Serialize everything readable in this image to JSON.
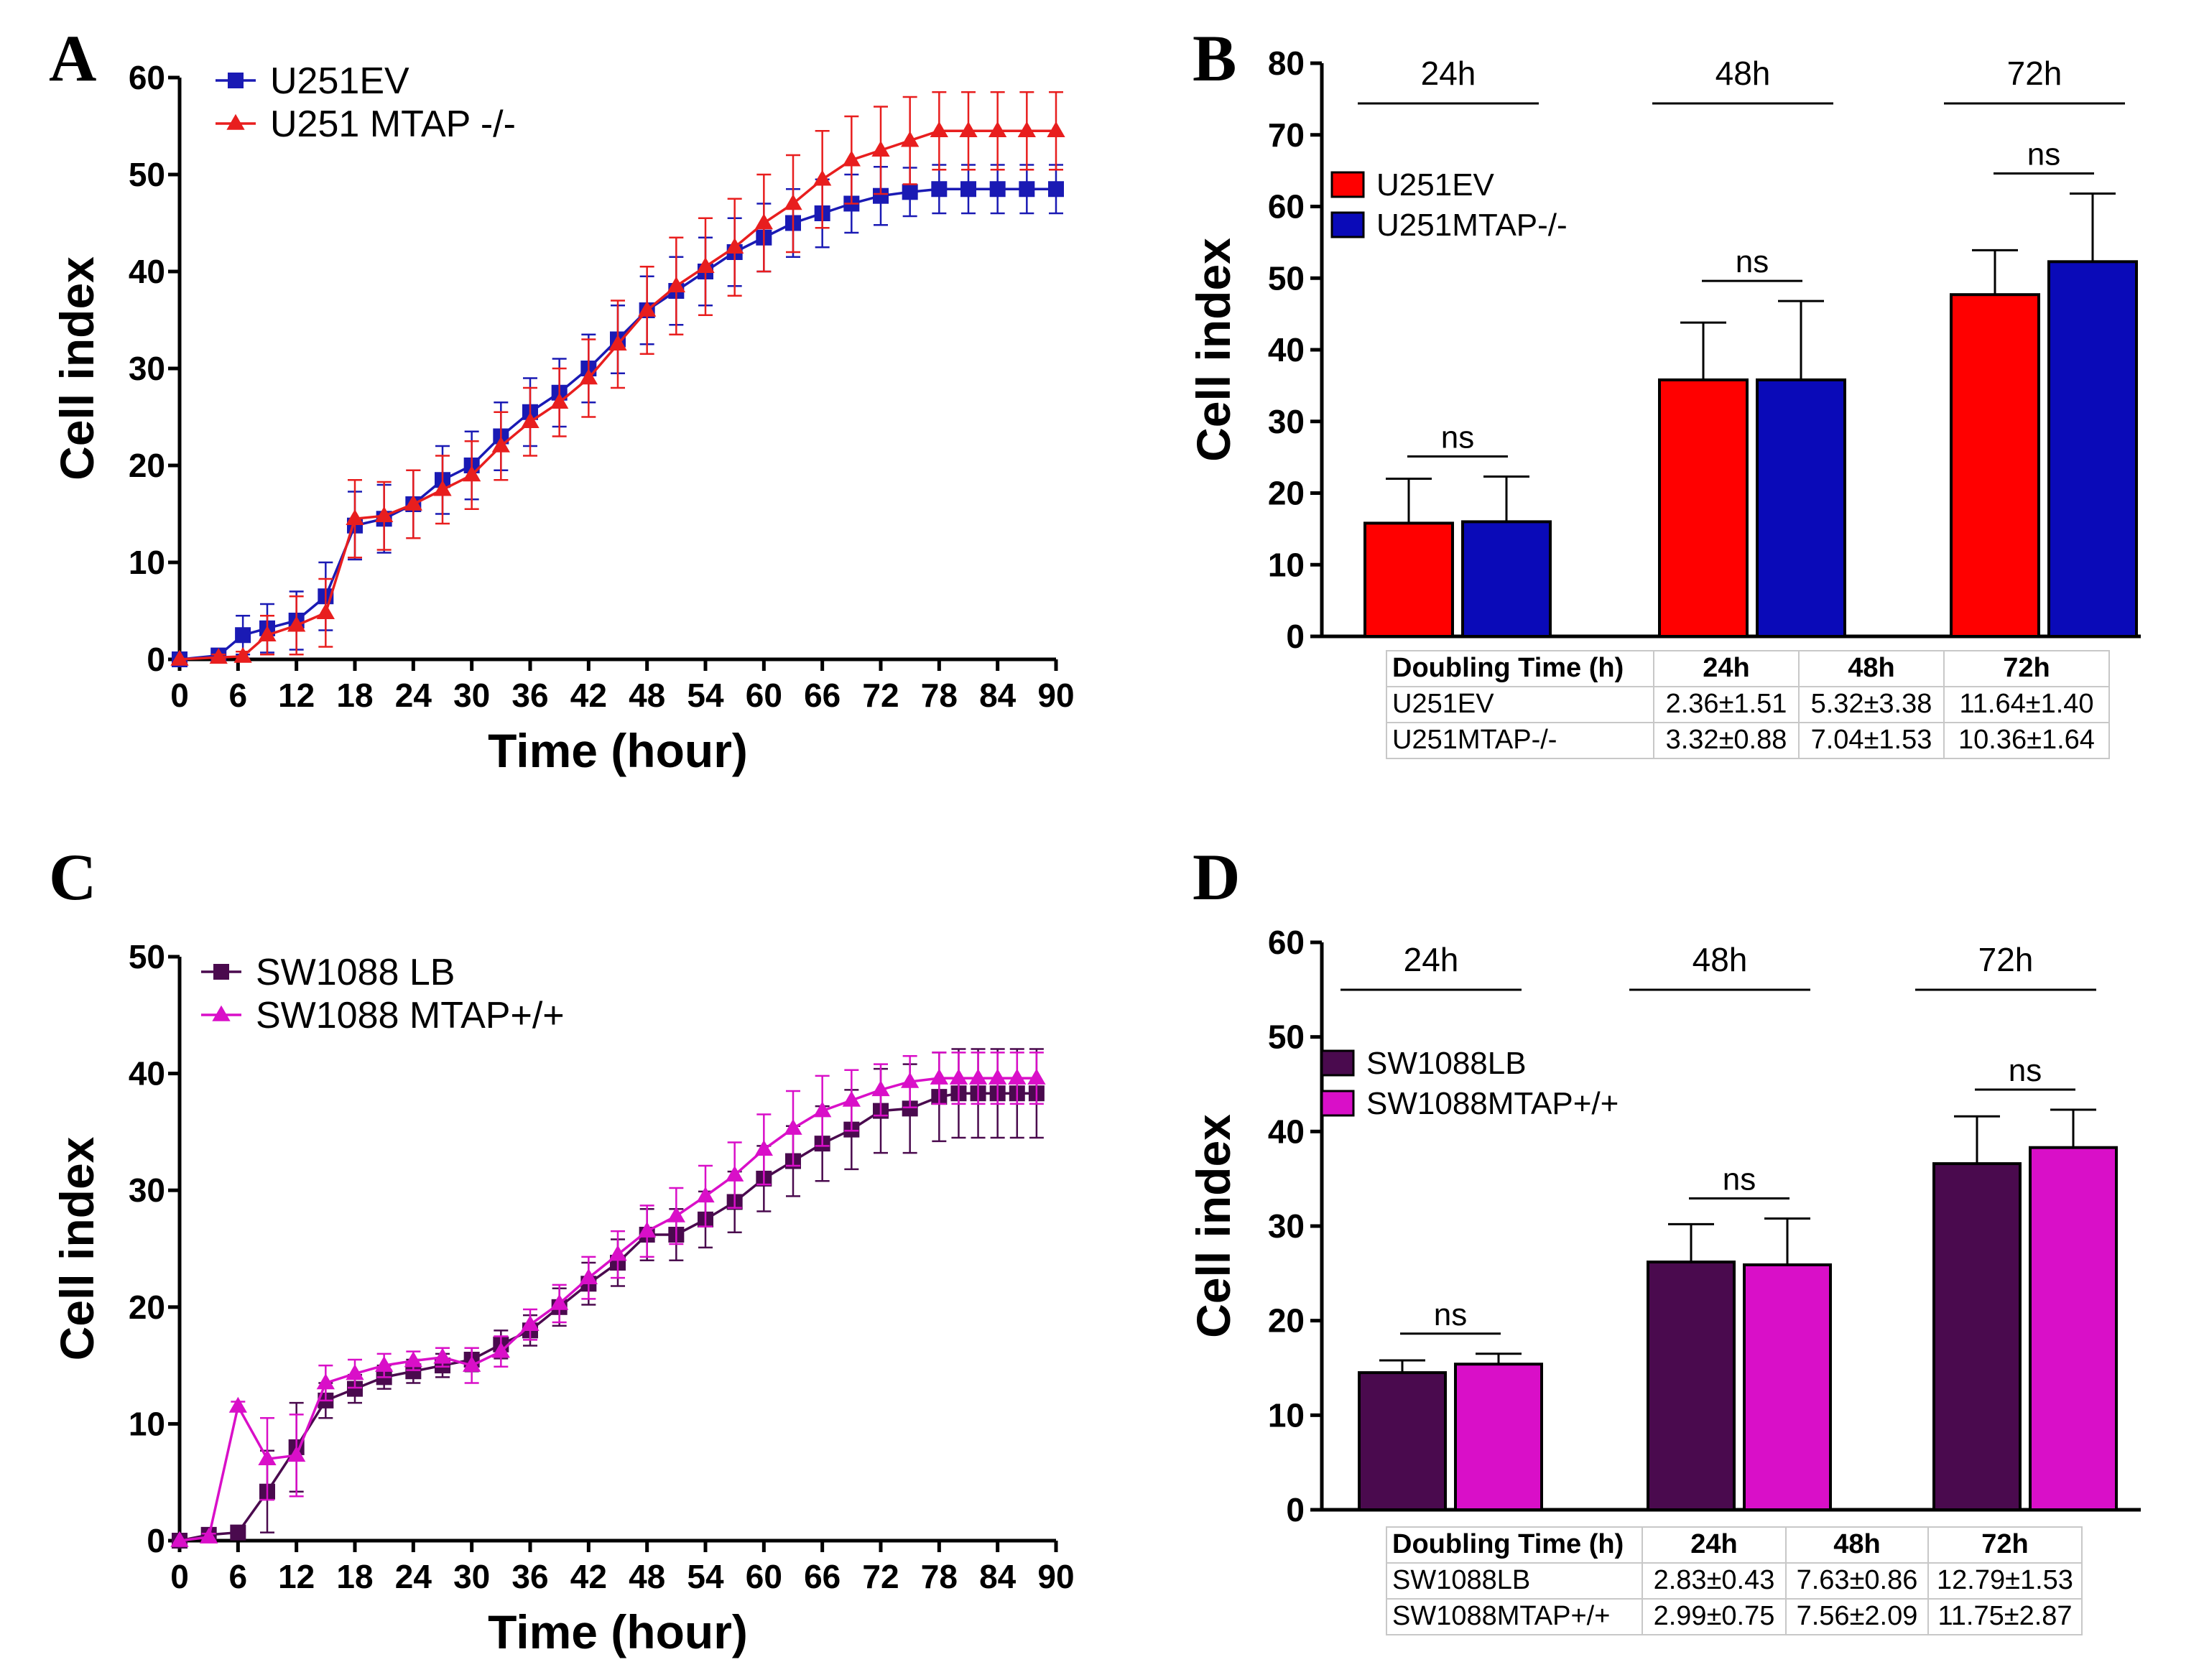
{
  "colors": {
    "u251ev_line": "#1a1ab4",
    "u251mtap_line": "#e81e1e",
    "bar_red": "#ff0000",
    "bar_blue": "#0a0ab8",
    "sw_lb": "#4a0a4e",
    "sw_mtap": "#d90fc8"
  },
  "panels": {
    "A": "A",
    "B": "B",
    "C": "C",
    "D": "D"
  },
  "chart_data": [
    {
      "id": "A",
      "type": "line",
      "xlabel": "Time (hour)",
      "ylabel": "Cell index",
      "xlim": [
        0,
        90
      ],
      "ylim": [
        0,
        60
      ],
      "xticks": [
        0,
        6,
        12,
        18,
        24,
        30,
        36,
        42,
        48,
        54,
        60,
        66,
        72,
        78,
        84,
        90
      ],
      "yticks": [
        0,
        10,
        20,
        30,
        40,
        50,
        60
      ],
      "series": [
        {
          "name": "U251EV",
          "marker": "square",
          "color": "#1a1ab4",
          "x": [
            0,
            4,
            6.5,
            9,
            12,
            15,
            18,
            21,
            24,
            27,
            30,
            33,
            36,
            39,
            42,
            45,
            48,
            51,
            54,
            57,
            60,
            63,
            66,
            69,
            72,
            75,
            78,
            81,
            84,
            87,
            90
          ],
          "y": [
            0,
            0.4,
            2.5,
            3.2,
            4,
            6.5,
            13.8,
            14.5,
            16,
            18.5,
            20,
            23,
            25.5,
            27.5,
            30,
            33,
            36,
            38,
            40,
            42,
            43.5,
            45,
            46,
            47,
            47.8,
            48.2,
            48.5,
            48.5,
            48.5,
            48.5,
            48.5
          ],
          "err": [
            0,
            0.5,
            2,
            2.5,
            3,
            3.5,
            3.5,
            3.5,
            3.5,
            3.5,
            3.5,
            3.5,
            3.5,
            3.5,
            3.5,
            3.5,
            3.5,
            3.5,
            3.5,
            3.5,
            3.5,
            3.5,
            3.5,
            3,
            3,
            2.5,
            2.5,
            2.5,
            2.5,
            2.5,
            2.5
          ]
        },
        {
          "name": "U251 MTAP -/-",
          "marker": "triangle",
          "color": "#e81e1e",
          "x": [
            0,
            4,
            6.5,
            9,
            12,
            15,
            18,
            21,
            24,
            27,
            30,
            33,
            36,
            39,
            42,
            45,
            48,
            51,
            54,
            57,
            60,
            63,
            66,
            69,
            72,
            75,
            78,
            81,
            84,
            87,
            90
          ],
          "y": [
            0,
            0.2,
            0.3,
            2.5,
            3.5,
            4.8,
            14.5,
            14.8,
            16,
            17.5,
            19,
            22,
            24.5,
            26.5,
            29,
            32.5,
            36,
            38.5,
            40.5,
            42.5,
            45,
            47,
            49.5,
            51.5,
            52.5,
            53.5,
            54.5,
            54.5,
            54.5,
            54.5,
            54.5
          ],
          "err": [
            0,
            0.3,
            0.5,
            2,
            3,
            3.5,
            4,
            3.5,
            3.5,
            3.5,
            3.5,
            3.5,
            3.5,
            3.5,
            4,
            4.5,
            4.5,
            5,
            5,
            5,
            5,
            5,
            5,
            4.5,
            4.5,
            4.5,
            4,
            4,
            4,
            4,
            4
          ]
        }
      ]
    },
    {
      "id": "B",
      "type": "bar",
      "ylabel": "Cell index",
      "ylim": [
        0,
        80
      ],
      "yticks": [
        0,
        10,
        20,
        30,
        40,
        50,
        60,
        70,
        80
      ],
      "categories": [
        "24h",
        "48h",
        "72h"
      ],
      "significance": [
        "ns",
        "ns",
        "ns"
      ],
      "series": [
        {
          "name": "U251EV",
          "color": "#ff0000",
          "values": [
            15.8,
            35.8,
            47.7
          ],
          "err": [
            6.2,
            8,
            6.2
          ]
        },
        {
          "name": "U251MTAP-/-",
          "color": "#0a0ab8",
          "values": [
            16,
            35.8,
            52.3
          ],
          "err": [
            6.3,
            11,
            9.5
          ]
        }
      ],
      "table": {
        "headers": [
          "Doubling Time (h)",
          "24h",
          "48h",
          "72h"
        ],
        "rows": [
          [
            "U251EV",
            "2.36±1.51",
            "5.32±3.38",
            "11.64±1.40"
          ],
          [
            "U251MTAP-/-",
            "3.32±0.88",
            "7.04±1.53",
            "10.36±1.64"
          ]
        ]
      }
    },
    {
      "id": "C",
      "type": "line",
      "xlabel": "Time (hour)",
      "ylabel": "Cell index",
      "xlim": [
        0,
        90
      ],
      "ylim": [
        0,
        50
      ],
      "xticks": [
        0,
        6,
        12,
        18,
        24,
        30,
        36,
        42,
        48,
        54,
        60,
        66,
        72,
        78,
        84,
        90
      ],
      "yticks": [
        0,
        10,
        20,
        30,
        40,
        50
      ],
      "series": [
        {
          "name": "SW1088 LB",
          "marker": "square",
          "color": "#4a0a4e",
          "x": [
            0,
            3,
            6,
            9,
            12,
            15,
            18,
            21,
            24,
            27,
            30,
            33,
            36,
            39,
            42,
            45,
            48,
            51,
            54,
            57,
            60,
            63,
            66,
            69,
            72,
            75,
            78,
            80,
            82,
            84,
            86,
            88
          ],
          "y": [
            0,
            0.5,
            0.7,
            4.2,
            8,
            12,
            13,
            14,
            14.5,
            15,
            15.5,
            16.8,
            18,
            20,
            22,
            23.8,
            26.2,
            26.2,
            27.5,
            29,
            31,
            32.5,
            34,
            35.2,
            36.8,
            37,
            38,
            38.3,
            38.3,
            38.3,
            38.3,
            38.3
          ],
          "err": [
            0,
            0.4,
            0.5,
            3.5,
            3.8,
            1.5,
            1.2,
            1,
            1,
            1,
            1,
            1.2,
            1.3,
            1.6,
            1.8,
            2,
            2.2,
            2.2,
            2.4,
            2.6,
            2.8,
            3,
            3.2,
            3.4,
            3.6,
            3.8,
            3.8,
            3.8,
            3.8,
            3.8,
            3.8,
            3.8
          ]
        },
        {
          "name": "SW1088 MTAP+/+",
          "marker": "triangle",
          "color": "#d90fc8",
          "x": [
            0,
            3,
            6,
            9,
            12,
            15,
            18,
            21,
            24,
            27,
            30,
            33,
            36,
            39,
            42,
            45,
            48,
            51,
            54,
            57,
            60,
            63,
            66,
            69,
            72,
            75,
            78,
            80,
            82,
            84,
            86,
            88
          ],
          "y": [
            0,
            0.3,
            11.5,
            7,
            7.3,
            13.5,
            14.3,
            15,
            15.4,
            15.7,
            15,
            16.2,
            18.5,
            20.3,
            22.5,
            24.5,
            26.5,
            27.8,
            29.5,
            31.3,
            33.5,
            35.3,
            36.8,
            37.7,
            38.6,
            39.3,
            39.6,
            39.6,
            39.6,
            39.6,
            39.6,
            39.6
          ],
          "err": [
            0,
            0.3,
            0.4,
            3.5,
            3.5,
            1.5,
            1.2,
            1,
            0.8,
            0.8,
            1.5,
            1.3,
            1.3,
            1.6,
            1.8,
            2,
            2.2,
            2.4,
            2.6,
            2.8,
            3,
            3.2,
            3,
            2.6,
            2.2,
            2.2,
            2.2,
            2.2,
            2.2,
            2.2,
            2.2,
            2.2
          ]
        }
      ]
    },
    {
      "id": "D",
      "type": "bar",
      "ylabel": "Cell index",
      "ylim": [
        0,
        60
      ],
      "yticks": [
        0,
        10,
        20,
        30,
        40,
        50,
        60
      ],
      "categories": [
        "24h",
        "48h",
        "72h"
      ],
      "significance": [
        "ns",
        "ns",
        "ns"
      ],
      "series": [
        {
          "name": "SW1088LB",
          "color": "#4a0a4e",
          "values": [
            14.5,
            26.2,
            36.6
          ],
          "err": [
            1.3,
            4,
            5
          ]
        },
        {
          "name": "SW1088MTAP+/+",
          "color": "#d90fc8",
          "values": [
            15.4,
            25.9,
            38.3
          ],
          "err": [
            1.1,
            4.9,
            4
          ]
        }
      ],
      "table": {
        "headers": [
          "Doubling Time (h)",
          "24h",
          "48h",
          "72h"
        ],
        "rows": [
          [
            "SW1088LB",
            "2.83±0.43",
            "7.63±0.86",
            "12.79±1.53"
          ],
          [
            "SW1088MTAP+/+",
            "2.99±0.75",
            "7.56±2.09",
            "11.75±2.87"
          ]
        ]
      }
    }
  ]
}
